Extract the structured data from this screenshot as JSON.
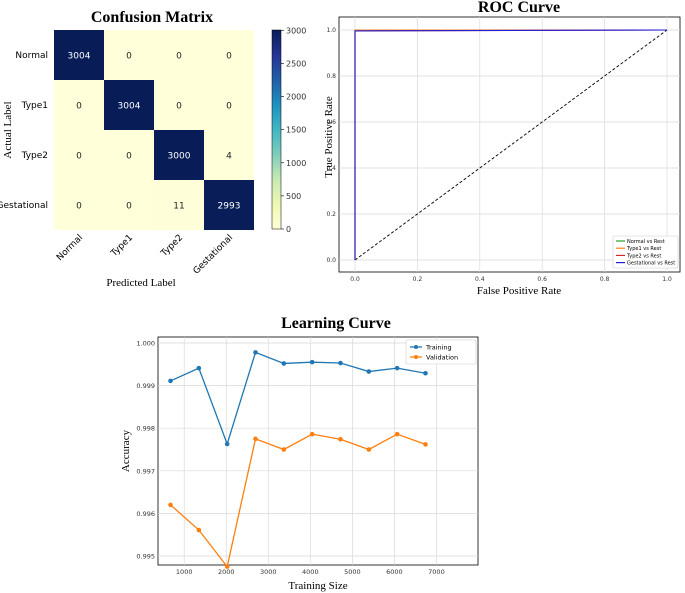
{
  "chart_data": [
    {
      "type": "heatmap",
      "title": "Confusion Matrix",
      "xlabel": "Predicted Label",
      "ylabel": "Actual Label",
      "x_categories": [
        "Normal",
        "Type1",
        "Type2",
        "Gestational"
      ],
      "y_categories": [
        "Normal",
        "Type1",
        "Type2",
        "Gestational"
      ],
      "values": [
        [
          3004,
          0,
          0,
          0
        ],
        [
          0,
          3004,
          0,
          0
        ],
        [
          0,
          0,
          3000,
          4
        ],
        [
          0,
          0,
          11,
          2993
        ]
      ],
      "colorbar": {
        "min": 0,
        "max": 3004,
        "ticks": [
          0,
          500,
          1000,
          1500,
          2000,
          2500,
          3000
        ]
      },
      "colors": {
        "low": "#ffffd9",
        "high": "#081d58"
      }
    },
    {
      "type": "line",
      "title": "ROC Curve",
      "xlabel": "False Positive Rate",
      "ylabel": "True Positive Rate",
      "xlim": [
        0,
        1
      ],
      "ylim": [
        0,
        1
      ],
      "x_ticks": [
        "0.0",
        "0.2",
        "0.4",
        "0.6",
        "0.8",
        "1.0"
      ],
      "y_ticks": [
        "0.0",
        "0.2",
        "0.4",
        "0.6",
        "0.8",
        "1.0"
      ],
      "grid": true,
      "legend_position": "bottom-right",
      "series": [
        {
          "name": "Normal vs Rest",
          "color": "#2ca02c",
          "x": [
            0,
            0,
            1
          ],
          "y": [
            0,
            1.0,
            1.0
          ]
        },
        {
          "name": "Type1 vs Rest",
          "color": "#ff7f0e",
          "x": [
            0,
            0,
            1
          ],
          "y": [
            0,
            1.0,
            1.0
          ]
        },
        {
          "name": "Type2 vs Rest",
          "color": "#d62728",
          "x": [
            0,
            0,
            1
          ],
          "y": [
            0,
            0.996,
            1.0
          ]
        },
        {
          "name": "Gestational vs Rest",
          "color": "#1f1fd6",
          "x": [
            0,
            0,
            1
          ],
          "y": [
            0,
            0.996,
            1.0
          ]
        }
      ],
      "reference_line": {
        "x": [
          0,
          1
        ],
        "y": [
          0,
          1
        ],
        "style": "dashed",
        "color": "#000000"
      }
    },
    {
      "type": "line",
      "title": "Learning Curve",
      "xlabel": "Training Size",
      "ylabel": "Accuracy",
      "xlim": [
        400,
        7000
      ],
      "ylim": [
        0.9945,
        1.0
      ],
      "x_ticks": [
        "1000",
        "2000",
        "3000",
        "4000",
        "5000",
        "6000",
        "7000"
      ],
      "y_ticks": [
        "0.995",
        "0.996",
        "0.997",
        "0.998",
        "0.999",
        "1.000"
      ],
      "grid": true,
      "legend_position": "top-right",
      "x": [
        674,
        1348,
        2022,
        2696,
        3370,
        4044,
        4718,
        5392,
        6066,
        6740
      ],
      "series": [
        {
          "name": "Training",
          "color": "#1f77b4",
          "values": [
            0.99911,
            0.99941,
            0.99763,
            0.99978,
            0.99952,
            0.99955,
            0.99953,
            0.99933,
            0.99941,
            0.99929
          ]
        },
        {
          "name": "Validation",
          "color": "#ff7f0e",
          "values": [
            0.9962,
            0.99561,
            0.99475,
            0.99775,
            0.9975,
            0.99786,
            0.99774,
            0.9975,
            0.99786,
            0.99762
          ]
        }
      ]
    }
  ]
}
